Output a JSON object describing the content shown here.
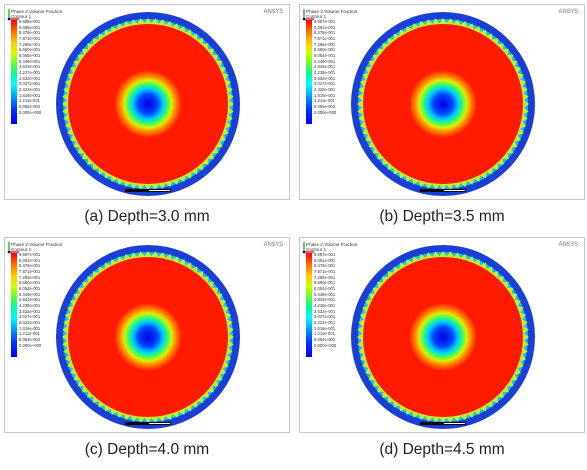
{
  "panels": [
    {
      "caption": "(a) Depth=3.0 mm",
      "legend_title": "Phase 2.Volume Fraction\nContour 1",
      "ticks": [
        "9.688e-001",
        "9.085e-001",
        "8.478e-001",
        "7.871e-001",
        "7.265e-001",
        "6.660e-001",
        "6.055e-001",
        "5.449e-001",
        "4.843e-001",
        "4.237e-001",
        "3.632e-001",
        "3.027e-001",
        "2.422e-001",
        "1.816e-001",
        "1.211e-001",
        "6.055e-002",
        "0.000e+000"
      ],
      "logo": "ANSYS"
    },
    {
      "caption": "(b) Depth=3.5 mm",
      "legend_title": "Phase 2.Volume Fraction\nContour 1",
      "ticks": [
        "9.687e-001",
        "9.081e-001",
        "8.478e-001",
        "7.871e-001",
        "7.265e-001",
        "6.660e-001",
        "6.054e-001",
        "5.449e-001",
        "4.843e-001",
        "4.238e-001",
        "3.632e-001",
        "3.027e-001",
        "2.422e-001",
        "1.816e-001",
        "1.211e-001",
        "6.055e-002",
        "0.000e+000"
      ],
      "logo": "ANSYS"
    },
    {
      "caption": "(c) Depth=4.0 mm",
      "legend_title": "Phase 2.Volume Fraction\nContour 1",
      "ticks": [
        "9.687e-001",
        "9.081e-001",
        "8.478e-001",
        "7.871e-001",
        "7.265e-001",
        "6.660e-001",
        "6.054e-001",
        "5.449e-001",
        "4.843e-001",
        "4.238e-001",
        "3.632e-001",
        "3.027e-001",
        "2.422e-001",
        "1.816e-001",
        "1.211e-001",
        "6.054e-002",
        "0.000e+000"
      ],
      "logo": "ANSYS"
    },
    {
      "caption": "(d) Depth=4.5 mm",
      "legend_title": "Phase 2.Volume Fraction\nContour 1",
      "ticks": [
        "9.687e-001",
        "9.081e-001",
        "8.478e-001",
        "7.871e-001",
        "7.265e-001",
        "6.660e-001",
        "6.054e-001",
        "5.449e-001",
        "4.843e-001",
        "4.238e-001",
        "3.632e-001",
        "3.027e-001",
        "2.422e-001",
        "1.816e-001",
        "1.211e-001",
        "6.054e-002",
        "0.000e+000"
      ],
      "logo": "ANSYS"
    }
  ],
  "colors": {
    "outer_ring": "#1a3fd6",
    "bulk": "#ff1a00",
    "center": "#0000e0"
  }
}
